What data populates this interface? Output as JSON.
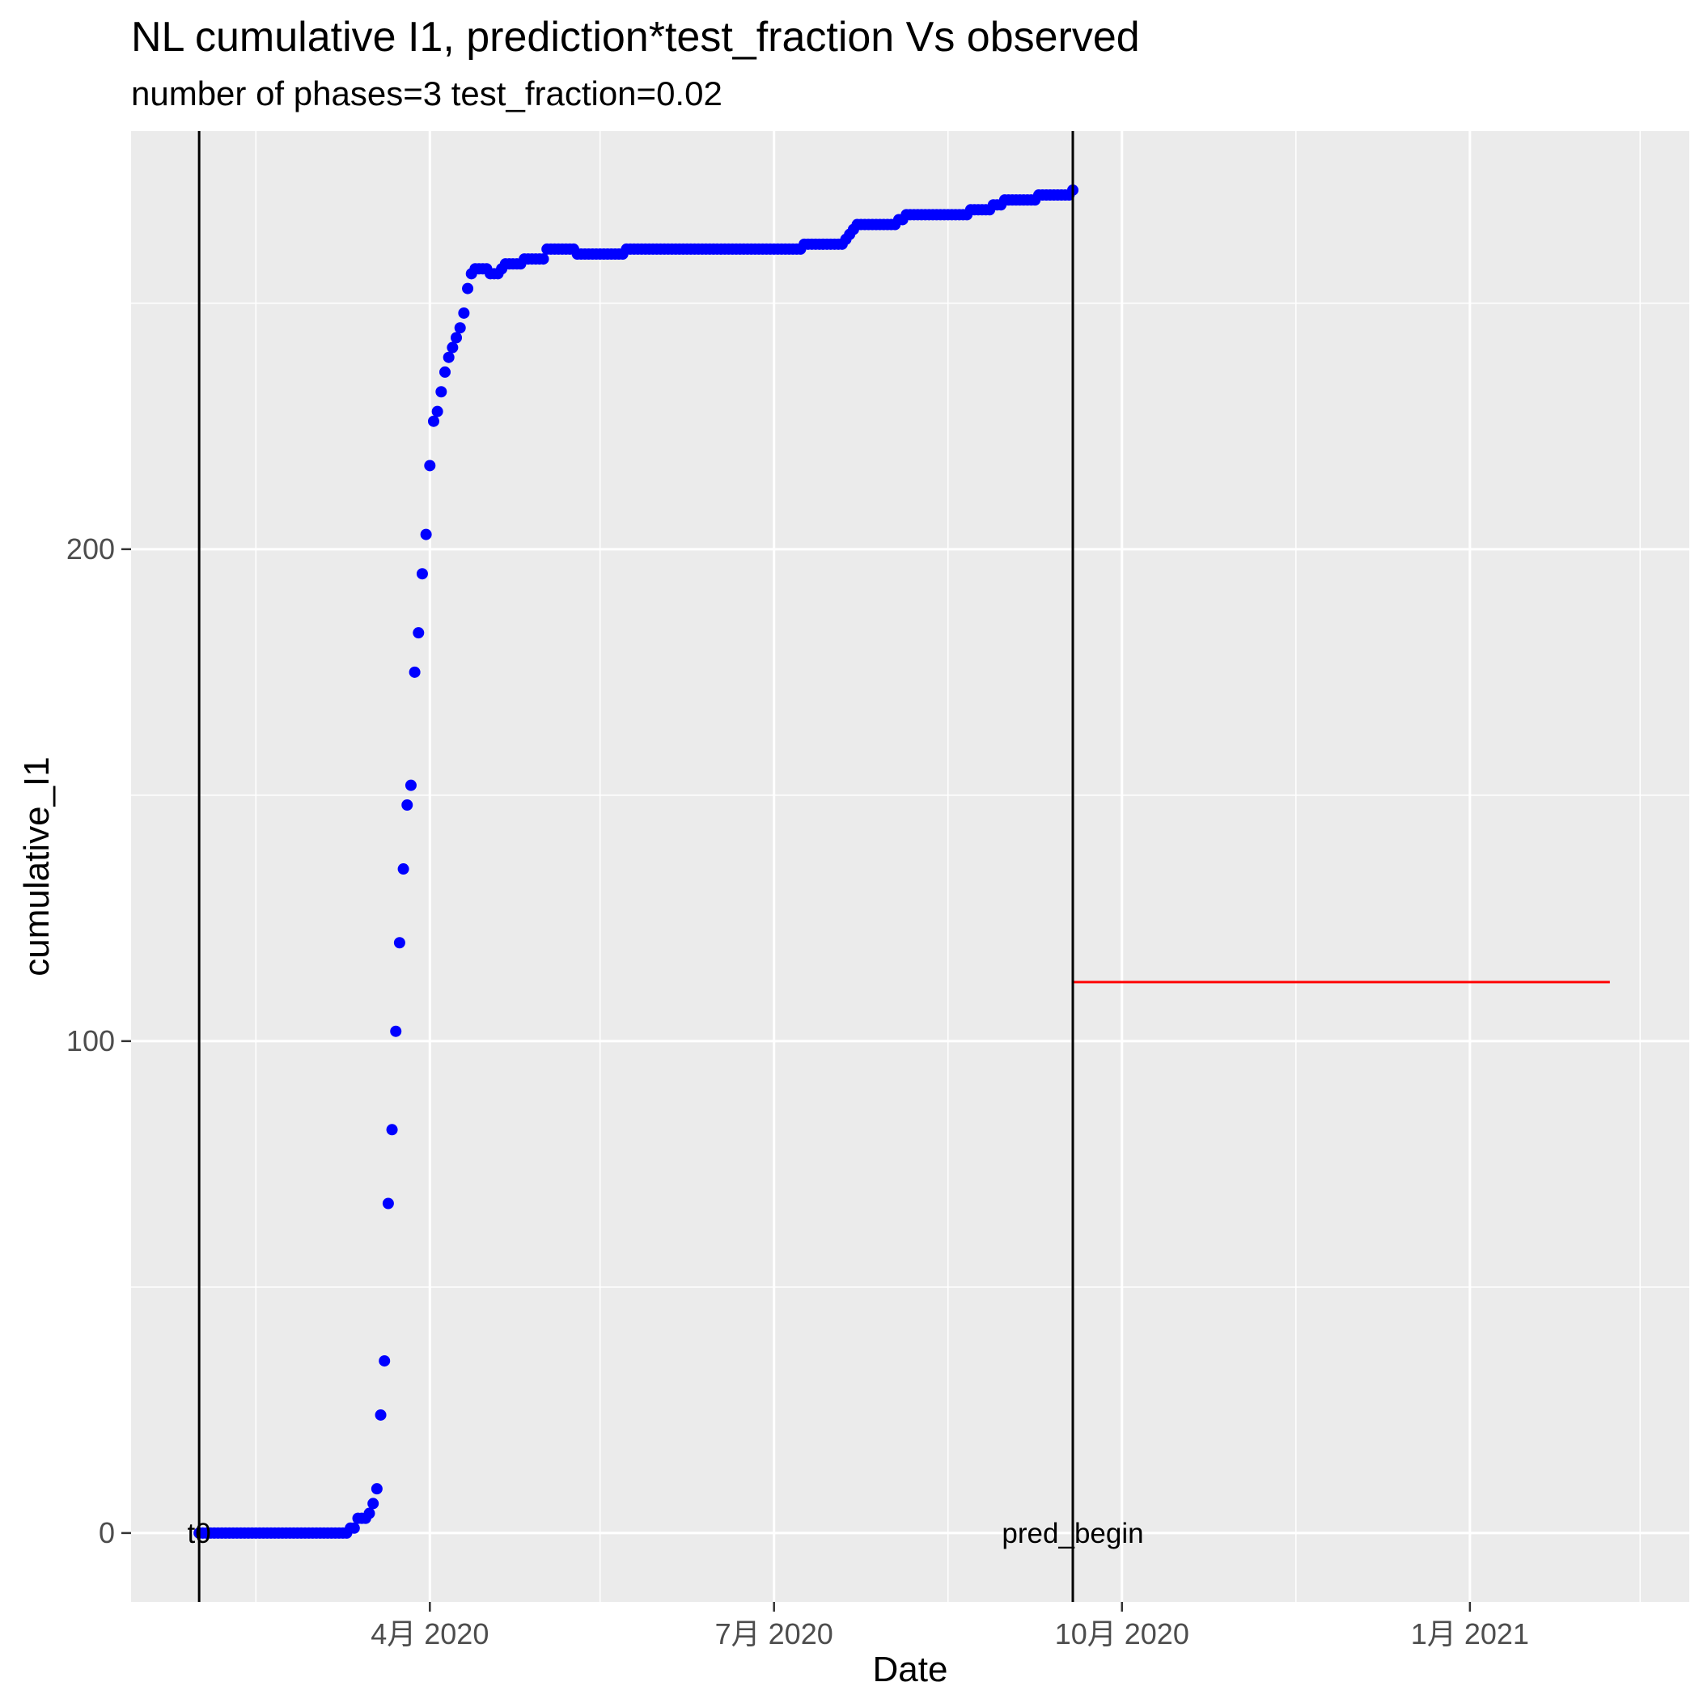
{
  "chart_data": {
    "type": "scatter",
    "title": "NL cumulative I1,  prediction*test_fraction Vs observed",
    "subtitle": "number of phases=3   test_fraction=0.02",
    "xlabel": "Date",
    "ylabel": "cumulative_I1",
    "xlim": [
      "2020-01-13",
      "2021-02-28"
    ],
    "ylim": [
      -14,
      285
    ],
    "grid": true,
    "legend": "none",
    "x_ticks": [
      {
        "date": "2020-04-01",
        "label": "4月 2020"
      },
      {
        "date": "2020-07-01",
        "label": "7月 2020"
      },
      {
        "date": "2020-10-01",
        "label": "10月 2020"
      },
      {
        "date": "2021-01-01",
        "label": "1月 2021"
      }
    ],
    "x_minor_ticks": [
      "2020-02-15",
      "2020-05-16",
      "2020-08-16",
      "2020-11-16",
      "2021-02-15"
    ],
    "y_ticks": [
      0,
      100,
      200
    ],
    "y_minor_ticks": [
      50,
      150,
      250
    ],
    "vlines": [
      {
        "date": "2020-01-31",
        "label": "t0"
      },
      {
        "date": "2020-09-18",
        "label": "pred_begin"
      }
    ],
    "colors": {
      "observed": "#0000ff",
      "prediction": "#ff0000",
      "vline": "#000000",
      "panel": "#ebebeb",
      "grid": "#ffffff",
      "tick_text": "#4d4d4d"
    },
    "series": [
      {
        "type": "points",
        "role": "observed",
        "points": [
          [
            "2020-01-31",
            0
          ],
          [
            "2020-02-01",
            0
          ],
          [
            "2020-02-02",
            0
          ],
          [
            "2020-02-03",
            0
          ],
          [
            "2020-02-04",
            0
          ],
          [
            "2020-02-05",
            0
          ],
          [
            "2020-02-06",
            0
          ],
          [
            "2020-02-07",
            0
          ],
          [
            "2020-02-08",
            0
          ],
          [
            "2020-02-09",
            0
          ],
          [
            "2020-02-10",
            0
          ],
          [
            "2020-02-11",
            0
          ],
          [
            "2020-02-12",
            0
          ],
          [
            "2020-02-13",
            0
          ],
          [
            "2020-02-14",
            0
          ],
          [
            "2020-02-15",
            0
          ],
          [
            "2020-02-16",
            0
          ],
          [
            "2020-02-17",
            0
          ],
          [
            "2020-02-18",
            0
          ],
          [
            "2020-02-19",
            0
          ],
          [
            "2020-02-20",
            0
          ],
          [
            "2020-02-21",
            0
          ],
          [
            "2020-02-22",
            0
          ],
          [
            "2020-02-23",
            0
          ],
          [
            "2020-02-24",
            0
          ],
          [
            "2020-02-25",
            0
          ],
          [
            "2020-02-26",
            0
          ],
          [
            "2020-02-27",
            0
          ],
          [
            "2020-02-28",
            0
          ],
          [
            "2020-02-29",
            0
          ],
          [
            "2020-03-01",
            0
          ],
          [
            "2020-03-02",
            0
          ],
          [
            "2020-03-03",
            0
          ],
          [
            "2020-03-04",
            0
          ],
          [
            "2020-03-05",
            0
          ],
          [
            "2020-03-06",
            0
          ],
          [
            "2020-03-07",
            0
          ],
          [
            "2020-03-08",
            0
          ],
          [
            "2020-03-09",
            0
          ],
          [
            "2020-03-10",
            0
          ],
          [
            "2020-03-11",
            1
          ],
          [
            "2020-03-12",
            1
          ],
          [
            "2020-03-13",
            3
          ],
          [
            "2020-03-14",
            3
          ],
          [
            "2020-03-15",
            3
          ],
          [
            "2020-03-16",
            4
          ],
          [
            "2020-03-17",
            6
          ],
          [
            "2020-03-18",
            9
          ],
          [
            "2020-03-19",
            24
          ],
          [
            "2020-03-20",
            35
          ],
          [
            "2020-03-21",
            67
          ],
          [
            "2020-03-22",
            82
          ],
          [
            "2020-03-23",
            102
          ],
          [
            "2020-03-24",
            120
          ],
          [
            "2020-03-25",
            135
          ],
          [
            "2020-03-26",
            148
          ],
          [
            "2020-03-27",
            152
          ],
          [
            "2020-03-28",
            175
          ],
          [
            "2020-03-29",
            183
          ],
          [
            "2020-03-30",
            195
          ],
          [
            "2020-03-31",
            203
          ],
          [
            "2020-04-01",
            217
          ],
          [
            "2020-04-02",
            226
          ],
          [
            "2020-04-03",
            228
          ],
          [
            "2020-04-04",
            232
          ],
          [
            "2020-04-05",
            236
          ],
          [
            "2020-04-06",
            239
          ],
          [
            "2020-04-07",
            241
          ],
          [
            "2020-04-08",
            243
          ],
          [
            "2020-04-09",
            245
          ],
          [
            "2020-04-10",
            248
          ],
          [
            "2020-04-11",
            253
          ],
          [
            "2020-04-12",
            256
          ],
          [
            "2020-04-13",
            257
          ],
          [
            "2020-04-14",
            257
          ],
          [
            "2020-04-15",
            257
          ],
          [
            "2020-04-16",
            257
          ],
          [
            "2020-04-17",
            256
          ],
          [
            "2020-04-18",
            256
          ],
          [
            "2020-04-19",
            256
          ],
          [
            "2020-04-20",
            257
          ],
          [
            "2020-04-21",
            258
          ],
          [
            "2020-04-22",
            258
          ],
          [
            "2020-04-23",
            258
          ],
          [
            "2020-04-24",
            258
          ],
          [
            "2020-04-25",
            258
          ],
          [
            "2020-04-26",
            259
          ],
          [
            "2020-04-27",
            259
          ],
          [
            "2020-04-28",
            259
          ],
          [
            "2020-04-29",
            259
          ],
          [
            "2020-04-30",
            259
          ],
          [
            "2020-05-01",
            259
          ],
          [
            "2020-05-02",
            261
          ],
          [
            "2020-05-03",
            261
          ],
          [
            "2020-05-04",
            261
          ],
          [
            "2020-05-05",
            261
          ],
          [
            "2020-05-06",
            261
          ],
          [
            "2020-05-07",
            261
          ],
          [
            "2020-05-08",
            261
          ],
          [
            "2020-05-09",
            261
          ],
          [
            "2020-05-10",
            260
          ],
          [
            "2020-05-11",
            260
          ],
          [
            "2020-05-12",
            260
          ],
          [
            "2020-05-13",
            260
          ],
          [
            "2020-05-14",
            260
          ],
          [
            "2020-05-15",
            260
          ],
          [
            "2020-05-16",
            260
          ],
          [
            "2020-05-17",
            260
          ],
          [
            "2020-05-18",
            260
          ],
          [
            "2020-05-19",
            260
          ],
          [
            "2020-05-20",
            260
          ],
          [
            "2020-05-21",
            260
          ],
          [
            "2020-05-22",
            260
          ],
          [
            "2020-05-23",
            261
          ],
          [
            "2020-05-24",
            261
          ],
          [
            "2020-05-25",
            261
          ],
          [
            "2020-05-26",
            261
          ],
          [
            "2020-05-27",
            261
          ],
          [
            "2020-05-28",
            261
          ],
          [
            "2020-05-29",
            261
          ],
          [
            "2020-05-30",
            261
          ],
          [
            "2020-05-31",
            261
          ],
          [
            "2020-06-01",
            261
          ],
          [
            "2020-06-02",
            261
          ],
          [
            "2020-06-03",
            261
          ],
          [
            "2020-06-04",
            261
          ],
          [
            "2020-06-05",
            261
          ],
          [
            "2020-06-06",
            261
          ],
          [
            "2020-06-07",
            261
          ],
          [
            "2020-06-08",
            261
          ],
          [
            "2020-06-09",
            261
          ],
          [
            "2020-06-10",
            261
          ],
          [
            "2020-06-11",
            261
          ],
          [
            "2020-06-12",
            261
          ],
          [
            "2020-06-13",
            261
          ],
          [
            "2020-06-14",
            261
          ],
          [
            "2020-06-15",
            261
          ],
          [
            "2020-06-16",
            261
          ],
          [
            "2020-06-17",
            261
          ],
          [
            "2020-06-18",
            261
          ],
          [
            "2020-06-19",
            261
          ],
          [
            "2020-06-20",
            261
          ],
          [
            "2020-06-21",
            261
          ],
          [
            "2020-06-22",
            261
          ],
          [
            "2020-06-23",
            261
          ],
          [
            "2020-06-24",
            261
          ],
          [
            "2020-06-25",
            261
          ],
          [
            "2020-06-26",
            261
          ],
          [
            "2020-06-27",
            261
          ],
          [
            "2020-06-28",
            261
          ],
          [
            "2020-06-29",
            261
          ],
          [
            "2020-06-30",
            261
          ],
          [
            "2020-07-01",
            261
          ],
          [
            "2020-07-02",
            261
          ],
          [
            "2020-07-03",
            261
          ],
          [
            "2020-07-04",
            261
          ],
          [
            "2020-07-05",
            261
          ],
          [
            "2020-07-06",
            261
          ],
          [
            "2020-07-07",
            261
          ],
          [
            "2020-07-08",
            261
          ],
          [
            "2020-07-09",
            262
          ],
          [
            "2020-07-10",
            262
          ],
          [
            "2020-07-11",
            262
          ],
          [
            "2020-07-12",
            262
          ],
          [
            "2020-07-13",
            262
          ],
          [
            "2020-07-14",
            262
          ],
          [
            "2020-07-15",
            262
          ],
          [
            "2020-07-16",
            262
          ],
          [
            "2020-07-17",
            262
          ],
          [
            "2020-07-18",
            262
          ],
          [
            "2020-07-19",
            262
          ],
          [
            "2020-07-20",
            263
          ],
          [
            "2020-07-21",
            264
          ],
          [
            "2020-07-22",
            265
          ],
          [
            "2020-07-23",
            266
          ],
          [
            "2020-07-24",
            266
          ],
          [
            "2020-07-25",
            266
          ],
          [
            "2020-07-26",
            266
          ],
          [
            "2020-07-27",
            266
          ],
          [
            "2020-07-28",
            266
          ],
          [
            "2020-07-29",
            266
          ],
          [
            "2020-07-30",
            266
          ],
          [
            "2020-07-31",
            266
          ],
          [
            "2020-08-01",
            266
          ],
          [
            "2020-08-02",
            266
          ],
          [
            "2020-08-03",
            267
          ],
          [
            "2020-08-04",
            267
          ],
          [
            "2020-08-05",
            268
          ],
          [
            "2020-08-06",
            268
          ],
          [
            "2020-08-07",
            268
          ],
          [
            "2020-08-08",
            268
          ],
          [
            "2020-08-09",
            268
          ],
          [
            "2020-08-10",
            268
          ],
          [
            "2020-08-11",
            268
          ],
          [
            "2020-08-12",
            268
          ],
          [
            "2020-08-13",
            268
          ],
          [
            "2020-08-14",
            268
          ],
          [
            "2020-08-15",
            268
          ],
          [
            "2020-08-16",
            268
          ],
          [
            "2020-08-17",
            268
          ],
          [
            "2020-08-18",
            268
          ],
          [
            "2020-08-19",
            268
          ],
          [
            "2020-08-20",
            268
          ],
          [
            "2020-08-21",
            268
          ],
          [
            "2020-08-22",
            269
          ],
          [
            "2020-08-23",
            269
          ],
          [
            "2020-08-24",
            269
          ],
          [
            "2020-08-25",
            269
          ],
          [
            "2020-08-26",
            269
          ],
          [
            "2020-08-27",
            269
          ],
          [
            "2020-08-28",
            270
          ],
          [
            "2020-08-29",
            270
          ],
          [
            "2020-08-30",
            270
          ],
          [
            "2020-08-31",
            271
          ],
          [
            "2020-09-01",
            271
          ],
          [
            "2020-09-02",
            271
          ],
          [
            "2020-09-03",
            271
          ],
          [
            "2020-09-04",
            271
          ],
          [
            "2020-09-05",
            271
          ],
          [
            "2020-09-06",
            271
          ],
          [
            "2020-09-07",
            271
          ],
          [
            "2020-09-08",
            271
          ],
          [
            "2020-09-09",
            272
          ],
          [
            "2020-09-10",
            272
          ],
          [
            "2020-09-11",
            272
          ],
          [
            "2020-09-12",
            272
          ],
          [
            "2020-09-13",
            272
          ],
          [
            "2020-09-14",
            272
          ],
          [
            "2020-09-15",
            272
          ],
          [
            "2020-09-16",
            272
          ],
          [
            "2020-09-17",
            272
          ],
          [
            "2020-09-18",
            273
          ]
        ]
      },
      {
        "type": "line",
        "role": "prediction",
        "points": [
          [
            "2020-09-18",
            112
          ],
          [
            "2021-02-07",
            112
          ]
        ]
      }
    ]
  }
}
